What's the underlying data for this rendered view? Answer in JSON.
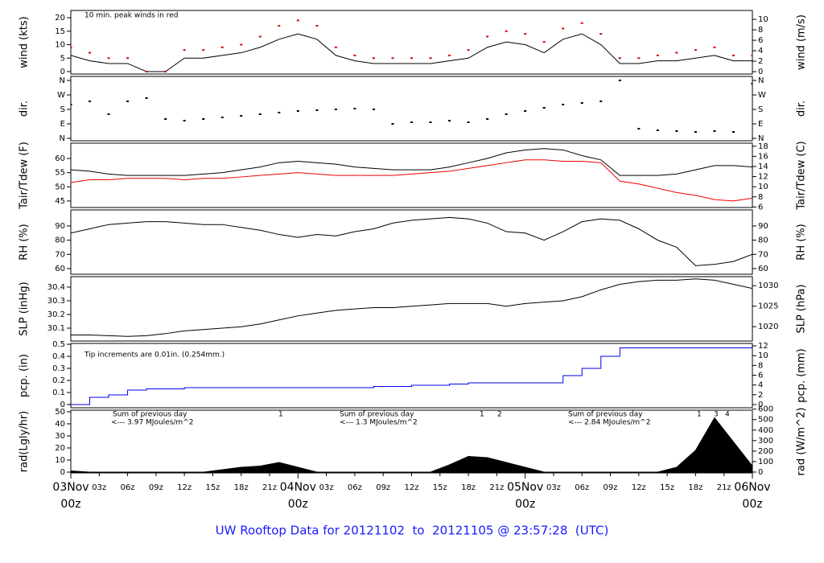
{
  "title": "UW Rooftop Data for 20121102  to  20121105 @ 23:57:28  (UTC)",
  "x_axis": {
    "xlim": [
      0,
      72
    ],
    "x": [
      0,
      2,
      4,
      6,
      8,
      10,
      12,
      14,
      16,
      18,
      20,
      22,
      24,
      26,
      28,
      30,
      32,
      34,
      36,
      38,
      40,
      42,
      44,
      46,
      48,
      50,
      52,
      54,
      56,
      58,
      60,
      62,
      64,
      66,
      68,
      70,
      72
    ],
    "major_ticks": [
      {
        "value": 0,
        "label": "03Nov",
        "label2": "00z"
      },
      {
        "value": 24,
        "label": "04Nov",
        "label2": "00z"
      },
      {
        "value": 48,
        "label": "05Nov",
        "label2": "00z"
      },
      {
        "value": 72,
        "label": "06Nov",
        "label2": "00z"
      }
    ],
    "minor_ticks": [
      {
        "value": 3,
        "label": "03z"
      },
      {
        "value": 6,
        "label": "06z"
      },
      {
        "value": 9,
        "label": "09z"
      },
      {
        "value": 12,
        "label": "12z"
      },
      {
        "value": 15,
        "label": "15z"
      },
      {
        "value": 18,
        "label": "18z"
      },
      {
        "value": 21,
        "label": "21z"
      },
      {
        "value": 27,
        "label": "03z"
      },
      {
        "value": 30,
        "label": "06z"
      },
      {
        "value": 33,
        "label": "09z"
      },
      {
        "value": 36,
        "label": "12z"
      },
      {
        "value": 39,
        "label": "15z"
      },
      {
        "value": 42,
        "label": "18z"
      },
      {
        "value": 45,
        "label": "21z"
      },
      {
        "value": 51,
        "label": "03z"
      },
      {
        "value": 54,
        "label": "06z"
      },
      {
        "value": 57,
        "label": "09z"
      },
      {
        "value": 60,
        "label": "12z"
      },
      {
        "value": 63,
        "label": "15z"
      },
      {
        "value": 66,
        "label": "18z"
      },
      {
        "value": 69,
        "label": "21z"
      }
    ]
  },
  "chart_data": [
    {
      "type": "line",
      "ylabel": "wind (kts)",
      "y2label": "wind (m/s)",
      "ylim": [
        -0.9,
        22.7
      ],
      "yticks": [
        0,
        5,
        10,
        15,
        20
      ],
      "y2lim": [
        -0.45,
        11.7
      ],
      "y2ticks": [
        0,
        2,
        4,
        6,
        8,
        10
      ],
      "annotations": [
        {
          "text": "10 min. peak winds in red",
          "color": "#cc0000"
        }
      ],
      "series": [
        {
          "color": "#000000",
          "values": [
            6,
            4,
            3,
            3,
            0,
            0,
            5,
            5,
            6,
            7,
            9,
            12,
            14,
            12,
            6,
            4,
            3,
            3,
            3,
            3,
            4,
            5,
            9,
            11,
            10,
            7,
            12,
            14,
            10,
            3,
            3,
            4,
            4,
            5,
            6,
            4,
            4
          ]
        },
        {
          "color": "#dd0000",
          "dots": true,
          "values": [
            9,
            7,
            5,
            5,
            0,
            0,
            8,
            8,
            9,
            10,
            13,
            17,
            19,
            17,
            9,
            6,
            5,
            5,
            5,
            5,
            6,
            8,
            13,
            15,
            14,
            11,
            16,
            18,
            14,
            5,
            5,
            6,
            7,
            8,
            9,
            6,
            6
          ]
        }
      ]
    },
    {
      "type": "scatter",
      "ylabel": "dir.",
      "y2label": "dir.",
      "ylim": [
        -15,
        385
      ],
      "yticks": [
        {
          "value": 0,
          "label": "N"
        },
        {
          "value": 90,
          "label": "E"
        },
        {
          "value": 180,
          "label": "S"
        },
        {
          "value": 270,
          "label": "W"
        },
        {
          "value": 360,
          "label": "N"
        }
      ],
      "y2lim": [
        -15,
        385
      ],
      "y2ticks": [
        {
          "value": 0,
          "label": "N"
        },
        {
          "value": 90,
          "label": "E"
        },
        {
          "value": 180,
          "label": "S"
        },
        {
          "value": 270,
          "label": "W"
        },
        {
          "value": 360,
          "label": "N"
        }
      ],
      "series": [
        {
          "color": "#000000",
          "values": [
            210,
            230,
            150,
            230,
            250,
            120,
            110,
            120,
            130,
            140,
            150,
            160,
            170,
            175,
            180,
            185,
            180,
            90,
            100,
            100,
            110,
            100,
            120,
            150,
            170,
            190,
            210,
            220,
            230,
            360,
            60,
            50,
            45,
            40,
            45,
            40,
            340
          ]
        }
      ]
    },
    {
      "type": "line",
      "ylabel": "Tair/Tdew (F)",
      "y2label": "Tair/Tdew (C)",
      "ylim": [
        42.7,
        65.4
      ],
      "yticks": [
        45,
        50,
        55,
        60
      ],
      "y2lim": [
        5.9,
        18.6
      ],
      "y2ticks": [
        6,
        8,
        10,
        12,
        14,
        16,
        18
      ],
      "series": [
        {
          "color": "#000000",
          "values": [
            56,
            55.5,
            54.5,
            54,
            54,
            54,
            54,
            54.5,
            55,
            56,
            57,
            58.5,
            59,
            58.5,
            58,
            57,
            56.5,
            56,
            56,
            56,
            57,
            58.5,
            60,
            62,
            63,
            63.5,
            63,
            61,
            59.5,
            54,
            54,
            54,
            54.5,
            56,
            57.5,
            57.5,
            57
          ]
        },
        {
          "color": "#ee0000",
          "values": [
            51.5,
            52.5,
            52.5,
            53,
            53,
            53,
            52.5,
            53,
            53,
            53.5,
            54,
            54.5,
            55,
            54.5,
            54,
            54,
            54,
            54,
            54.5,
            55,
            55.5,
            56.5,
            57.5,
            58.5,
            59.5,
            59.5,
            59,
            59,
            58.5,
            52,
            51,
            49.5,
            48,
            47,
            45.5,
            45,
            46
          ]
        }
      ]
    },
    {
      "type": "line",
      "ylabel": "RH (%)",
      "y2label": "RH (%)",
      "ylim": [
        56,
        101.3
      ],
      "yticks": [
        60,
        70,
        80,
        90
      ],
      "y2lim": [
        56,
        101.3
      ],
      "y2ticks": [
        60,
        70,
        80,
        90
      ],
      "series": [
        {
          "color": "#000000",
          "values": [
            85,
            88,
            91,
            92,
            93,
            93,
            92,
            91,
            91,
            89,
            87,
            84,
            82,
            84,
            83,
            86,
            88,
            92,
            94,
            95,
            96,
            95,
            92,
            86,
            85,
            80,
            86,
            93,
            95,
            94,
            88,
            80,
            75,
            62,
            63,
            65,
            70
          ]
        }
      ]
    },
    {
      "type": "line",
      "ylabel": "SLP (inHg)",
      "y2label": "SLP (hPa)",
      "ylim": [
        30.006,
        30.476
      ],
      "yticks": [
        30.1,
        30.2,
        30.3,
        30.4
      ],
      "y2lim": [
        1016.5,
        1032.2
      ],
      "y2ticks": [
        1020,
        1025,
        1030
      ],
      "series": [
        {
          "color": "#000000",
          "values": [
            30.05,
            30.05,
            30.045,
            30.04,
            30.045,
            30.06,
            30.08,
            30.09,
            30.1,
            30.11,
            30.13,
            30.16,
            30.19,
            30.21,
            30.23,
            30.24,
            30.25,
            30.25,
            30.26,
            30.27,
            30.28,
            30.28,
            30.28,
            30.26,
            30.28,
            30.29,
            30.3,
            30.33,
            30.38,
            30.42,
            30.44,
            30.45,
            30.45,
            30.46,
            30.45,
            30.42,
            30.39
          ]
        }
      ]
    },
    {
      "type": "line",
      "step": true,
      "ylabel": "pcp. (in)",
      "y2label": "pcp. (mm)",
      "ylim": [
        -0.027,
        0.507
      ],
      "yticks": [
        0.0,
        0.1,
        0.2,
        0.3,
        0.4,
        0.5
      ],
      "y2lim": [
        -0.66,
        12.5
      ],
      "y2ticks": [
        0,
        2,
        4,
        6,
        8,
        10,
        12
      ],
      "annotations": [
        {
          "text": "Tip increments are 0.01in. (0.254mm.)",
          "color": "#0000cc"
        }
      ],
      "series": [
        {
          "color": "#0000ee",
          "values": [
            0,
            0.06,
            0.08,
            0.12,
            0.13,
            0.13,
            0.14,
            0.14,
            0.14,
            0.14,
            0.14,
            0.14,
            0.14,
            0.14,
            0.14,
            0.14,
            0.15,
            0.15,
            0.16,
            0.16,
            0.17,
            0.18,
            0.18,
            0.18,
            0.18,
            0.18,
            0.24,
            0.3,
            0.4,
            0.47,
            0.47,
            0.47,
            0.47,
            0.47,
            0.47,
            0.47,
            0.47
          ]
        }
      ]
    },
    {
      "type": "area",
      "ylabel": "rad(Lgly/hr)",
      "y2label": "rad (W/m^2)",
      "ylim": [
        -0.67,
        51.3
      ],
      "yticks": [
        0,
        10,
        20,
        30,
        40,
        50
      ],
      "y2lim": [
        -8,
        590
      ],
      "y2ticks": [
        0,
        100,
        200,
        300,
        400,
        500,
        600
      ],
      "annotations": [
        {
          "text": "Sum of previous day",
          "color": "#9900cc"
        },
        {
          "text": "<--- 3.97 MJoules/m^2",
          "color": "#9900cc"
        },
        {
          "text": "Sum of previous day",
          "color": "#9900cc"
        },
        {
          "text": "<--- 1.3 MJoules/m^2",
          "color": "#9900cc"
        },
        {
          "text": "Sum of previous day",
          "color": "#9900cc"
        },
        {
          "text": "<--- 2.84 MJoules/m^2",
          "color": "#9900cc"
        },
        {
          "text": "1",
          "color": "#9900cc"
        },
        {
          "text": "1",
          "color": "#9900cc"
        },
        {
          "text": "2",
          "color": "#9900cc"
        },
        {
          "text": "1",
          "color": "#9900cc"
        },
        {
          "text": "3",
          "color": "#9900cc"
        },
        {
          "text": "4",
          "color": "#9900cc"
        }
      ],
      "series": [
        {
          "color": "#000000",
          "values": [
            1,
            0,
            0,
            0,
            0,
            0,
            0,
            0,
            2,
            4,
            5,
            8,
            4,
            0,
            0,
            0,
            0,
            0,
            0,
            0,
            6,
            13,
            12,
            8,
            4,
            0,
            0,
            0,
            0,
            0,
            0,
            0,
            4,
            18,
            45,
            25,
            5
          ]
        }
      ]
    }
  ]
}
